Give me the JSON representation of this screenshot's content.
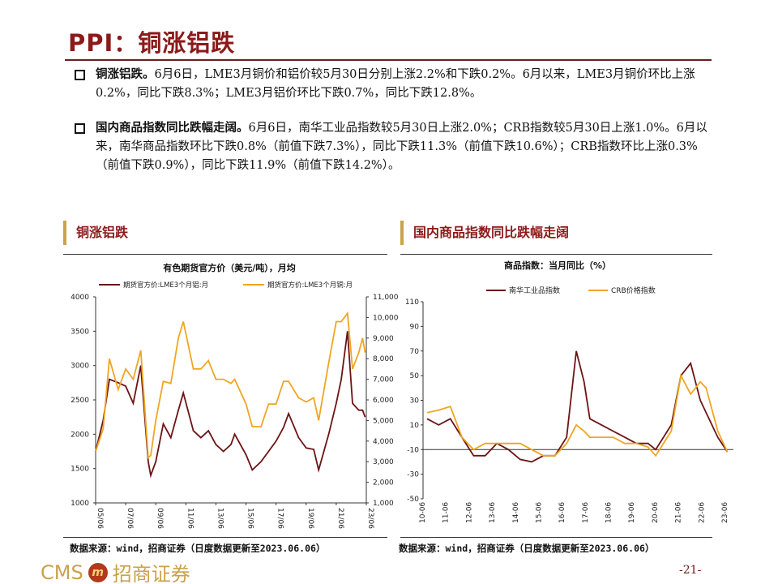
{
  "title": "PPI：铜涨铝跌",
  "bullets": [
    {
      "head": "铜涨铝跌。",
      "body": "6月6日，LME3月铜价和铝价较5月30日分别上涨2.2%和下跌0.2%。6月以来，LME3月铜价环比上涨0.2%，同比下跌8.3%；LME3月铝价环比下跌0.7%，同比下跌12.8%。"
    },
    {
      "head": "国内商品指数同比跌幅走阔。",
      "body": "6月6日，南华工业品指数较5月30日上涨2.0%；CRB指数较5月30日上涨1.0%。6月以来，南华商品指数环比下跌0.8%（前值下跌7.3%），同比下跌11.3%（前值下跌10.6%）；CRB指数环比上涨0.3%（前值下跌0.9%），同比下跌11.9%（前值下跌14.2%）。"
    }
  ],
  "sections": {
    "left": "铜涨铝跌",
    "right": "国内商品指数同比跌幅走阔"
  },
  "source": "数据来源：wind，招商证券（日度数据更新至2023.06.06）",
  "logo": {
    "latin": "CMS",
    "mark": "m",
    "cn": "招商证券"
  },
  "page_number": "-21-",
  "chart_data": [
    {
      "type": "line",
      "title": "有色期货官方价（美元/吨），月均",
      "x_ticks": [
        "05/06",
        "07/06",
        "09/06",
        "11/06",
        "13/06",
        "15/06",
        "17/06",
        "19/06",
        "21/06",
        "23/06"
      ],
      "y_left": {
        "range": [
          1000,
          4000
        ],
        "ticks": [
          "1000",
          "1500",
          "2000",
          "2500",
          "3000",
          "3500",
          "4000"
        ]
      },
      "y_right": {
        "range": [
          1000,
          11000
        ],
        "ticks": [
          "1,000",
          "2,000",
          "3,000",
          "4,000",
          "5,000",
          "6,000",
          "7,000",
          "8,000",
          "9,000",
          "10,000",
          "11,000"
        ]
      },
      "x": [
        "2005-06",
        "2005-12",
        "2006-05",
        "2006-12",
        "2007-06",
        "2007-12",
        "2008-06",
        "2008-12",
        "2009-02",
        "2009-06",
        "2009-12",
        "2010-06",
        "2010-12",
        "2011-04",
        "2011-12",
        "2012-06",
        "2012-12",
        "2013-06",
        "2013-12",
        "2014-06",
        "2014-09",
        "2015-06",
        "2015-11",
        "2016-06",
        "2016-12",
        "2017-06",
        "2017-12",
        "2018-04",
        "2018-12",
        "2019-06",
        "2019-12",
        "2020-04",
        "2020-12",
        "2021-06",
        "2021-10",
        "2022-03",
        "2022-07",
        "2022-12",
        "2023-03",
        "2023-05"
      ],
      "series": [
        {
          "name": "期货官方价:LME3个月铝:月",
          "axis": "left",
          "color": "#6b1414",
          "values": [
            1750,
            2200,
            2800,
            2750,
            2700,
            2450,
            3000,
            1600,
            1400,
            1600,
            2150,
            1950,
            2350,
            2600,
            2050,
            1950,
            2050,
            1850,
            1750,
            1850,
            2000,
            1700,
            1480,
            1600,
            1750,
            1900,
            2100,
            2300,
            1950,
            1800,
            1780,
            1480,
            2000,
            2450,
            2800,
            3500,
            2450,
            2350,
            2350,
            2250
          ],
          "color_hex": "#6b1414"
        },
        {
          "name": "期货官方价:LME3个月铜:月",
          "axis": "right",
          "color": "#f0a520",
          "values": [
            3500,
            4600,
            8000,
            6500,
            7500,
            7000,
            8400,
            3200,
            3300,
            5000,
            6900,
            6800,
            9000,
            9800,
            7500,
            7500,
            7900,
            7000,
            7000,
            6800,
            7000,
            5800,
            4700,
            4700,
            5800,
            5800,
            6900,
            6900,
            6100,
            5900,
            6100,
            5000,
            7800,
            9800,
            9800,
            10200,
            7500,
            8300,
            9000,
            8300
          ]
        }
      ]
    },
    {
      "type": "line",
      "title": "商品指数：当月同比（%）",
      "x_ticks": [
        "10-06",
        "11-06",
        "12-06",
        "13-06",
        "14-06",
        "15-06",
        "16-06",
        "17-06",
        "18-06",
        "19-06",
        "20-06",
        "21-06",
        "22-06",
        "23-06"
      ],
      "y": {
        "range": [
          -50,
          110
        ],
        "ticks": [
          "-50",
          "-30",
          "-10",
          "10",
          "30",
          "50",
          "70",
          "90",
          "110"
        ]
      },
      "x": [
        "2010-06",
        "2010-12",
        "2011-06",
        "2011-12",
        "2012-06",
        "2012-12",
        "2013-06",
        "2013-12",
        "2014-06",
        "2014-12",
        "2015-06",
        "2015-12",
        "2016-06",
        "2016-11",
        "2017-03",
        "2017-06",
        "2017-12",
        "2018-06",
        "2018-12",
        "2019-06",
        "2019-12",
        "2020-04",
        "2020-12",
        "2021-05",
        "2021-10",
        "2022-03",
        "2022-06",
        "2022-12",
        "2023-05"
      ],
      "series": [
        {
          "name": "南华工业品指数",
          "color": "#6b1414",
          "values": [
            15,
            10,
            15,
            0,
            -15,
            -15,
            -5,
            -10,
            -18,
            -20,
            -15,
            -15,
            0,
            70,
            45,
            15,
            10,
            5,
            0,
            -5,
            -5,
            -10,
            10,
            50,
            60,
            30,
            20,
            0,
            -12
          ]
        },
        {
          "name": "CRB价格指数",
          "color": "#f0a520",
          "values": [
            20,
            22,
            25,
            0,
            -10,
            -5,
            -5,
            -5,
            -5,
            -10,
            -15,
            -15,
            -5,
            10,
            5,
            0,
            0,
            0,
            -5,
            -5,
            -8,
            -15,
            5,
            50,
            35,
            45,
            40,
            5,
            -12
          ]
        }
      ]
    }
  ]
}
